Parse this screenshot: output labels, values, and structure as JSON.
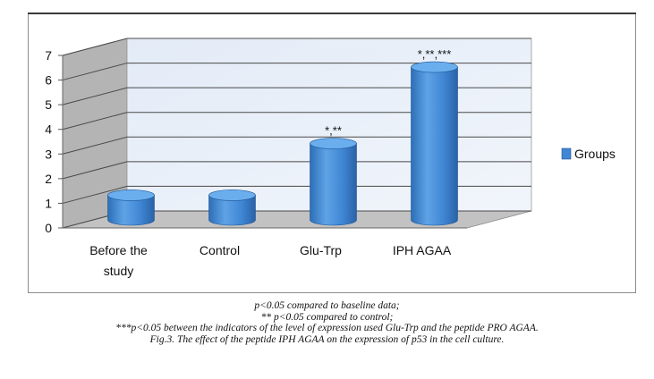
{
  "chart_data": {
    "type": "bar",
    "categories": [
      "Before the study",
      "Control",
      "Glu-Trp",
      "IPH AGAA"
    ],
    "category_lines": [
      [
        "Before the",
        "study"
      ],
      [
        "Control"
      ],
      [
        "Glu-Trp"
      ],
      [
        "IPH AGAA"
      ]
    ],
    "series": [
      {
        "name": "Groups",
        "values": [
          1,
          1,
          3.1,
          6.2
        ]
      }
    ],
    "annotations": [
      "",
      "",
      "*,**",
      "*,**,***"
    ],
    "ylim": [
      0,
      7
    ],
    "yticks": [
      "0",
      "1",
      "2",
      "3",
      "4",
      "5",
      "6",
      "7"
    ],
    "grid": true,
    "legend_position": "right",
    "style": "3d-cylinder",
    "bar_color": "#3f86d4"
  },
  "captions": [
    "p<0.05 compared to baseline data;",
    "** p<0.05 compared to control;",
    "***p<0.05 between the indicators of the level of expression used Glu-Trp and the peptide PRO AGAA.",
    "Fig.3. The effect of the peptide IPH AGAA on the expression of p53 in the cell culture."
  ]
}
